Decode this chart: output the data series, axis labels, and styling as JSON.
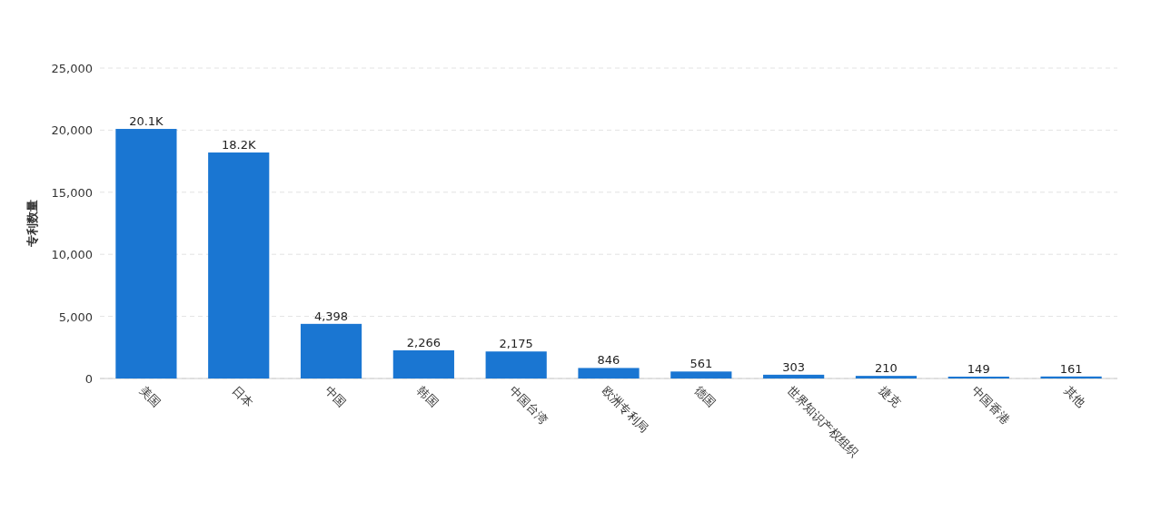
{
  "chart_data": {
    "type": "bar",
    "ylabel": "专利数量",
    "categories": [
      "美国",
      "日本",
      "中国",
      "韩国",
      "中国台湾",
      "欧洲专利局",
      "德国",
      "世界知识产权组织",
      "捷克",
      "中国香港",
      "其他"
    ],
    "values": [
      20100,
      18200,
      4398,
      2266,
      2175,
      846,
      561,
      303,
      210,
      149,
      161
    ],
    "value_labels": [
      "20.1K",
      "18.2K",
      "4,398",
      "2,266",
      "2,175",
      "846",
      "561",
      "303",
      "210",
      "149",
      "161"
    ],
    "color": "#1a76d2",
    "ylim": [
      0,
      25000
    ],
    "yticks": [
      {
        "value": 0,
        "label": "0"
      },
      {
        "value": 5000,
        "label": "5,000"
      },
      {
        "value": 10000,
        "label": "10,000"
      },
      {
        "value": 15000,
        "label": "15,000"
      },
      {
        "value": 20000,
        "label": "20,000"
      },
      {
        "value": 25000,
        "label": "25,000"
      }
    ],
    "grid": "y"
  }
}
